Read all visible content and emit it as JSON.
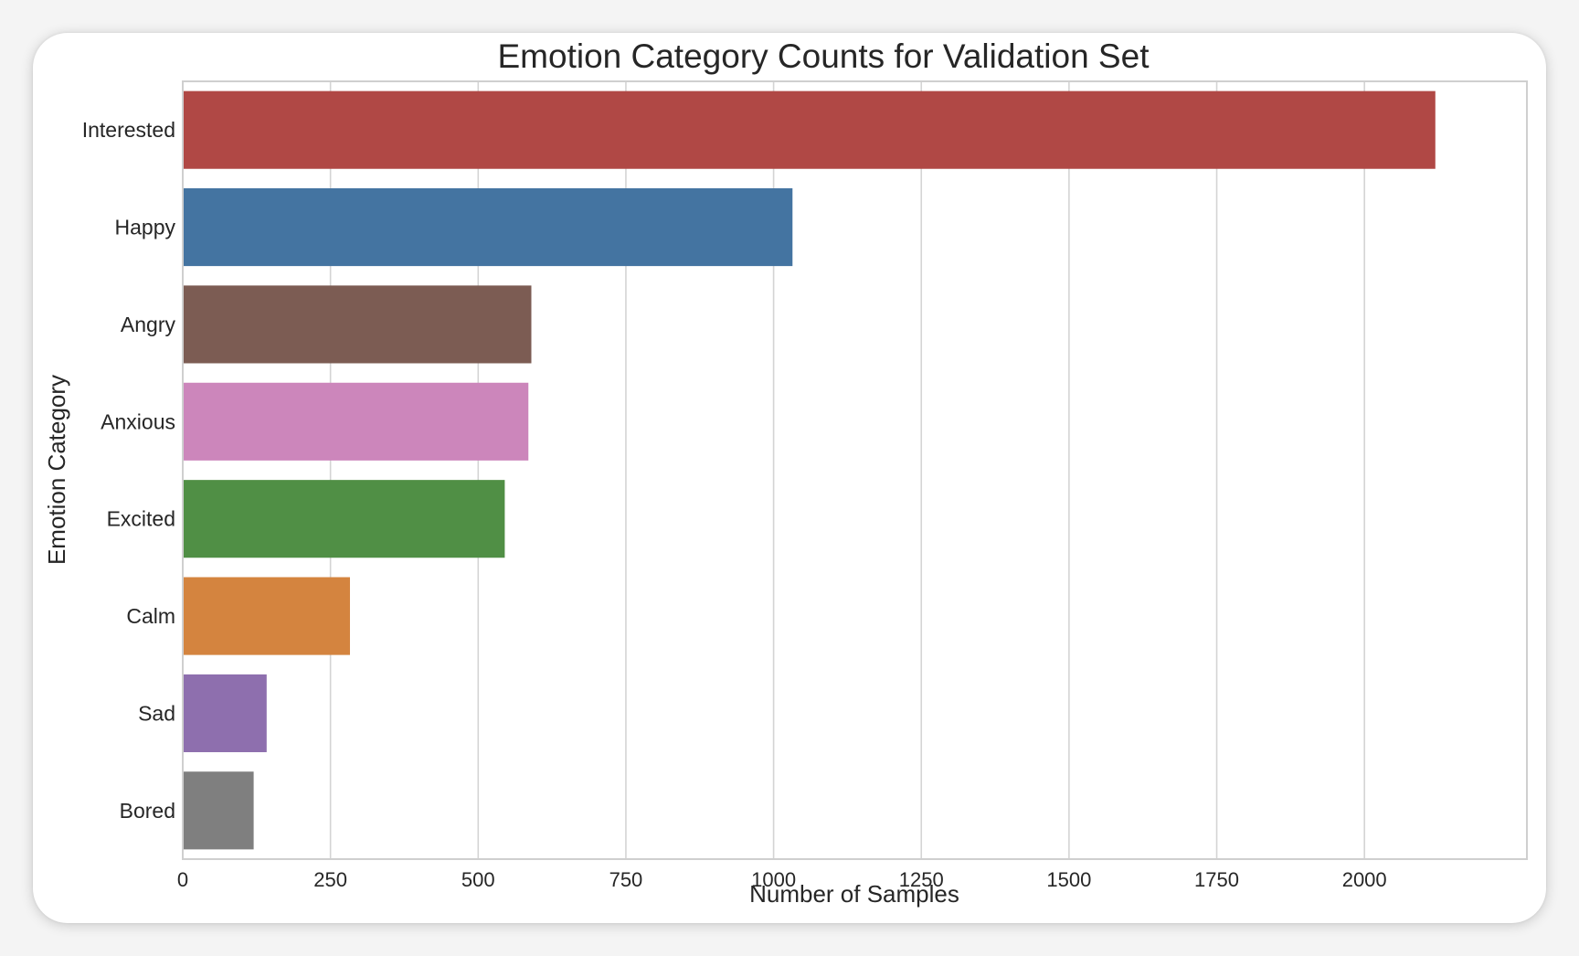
{
  "chart_data": {
    "type": "bar",
    "orientation": "horizontal",
    "title": "Emotion Category Counts for Validation Set",
    "xlabel": "Number of Samples",
    "ylabel": "Emotion Category",
    "categories": [
      "Interested",
      "Happy",
      "Angry",
      "Anxious",
      "Excited",
      "Calm",
      "Sad",
      "Bored"
    ],
    "values": [
      2120,
      1032,
      590,
      585,
      545,
      283,
      142,
      120
    ],
    "colors": [
      "#b04845",
      "#4474a1",
      "#7c5c53",
      "#cc86bb",
      "#508f45",
      "#d4843f",
      "#8e6fae",
      "#7f7f7f"
    ],
    "xlim": [
      0,
      2275
    ],
    "xticks": [
      0,
      250,
      500,
      750,
      1000,
      1250,
      1500,
      1750,
      2000
    ],
    "xtick_labels": [
      "0",
      "250",
      "500",
      "750",
      "1000",
      "1250",
      "1500",
      "1750",
      "2000"
    ],
    "grid": "vertical"
  }
}
